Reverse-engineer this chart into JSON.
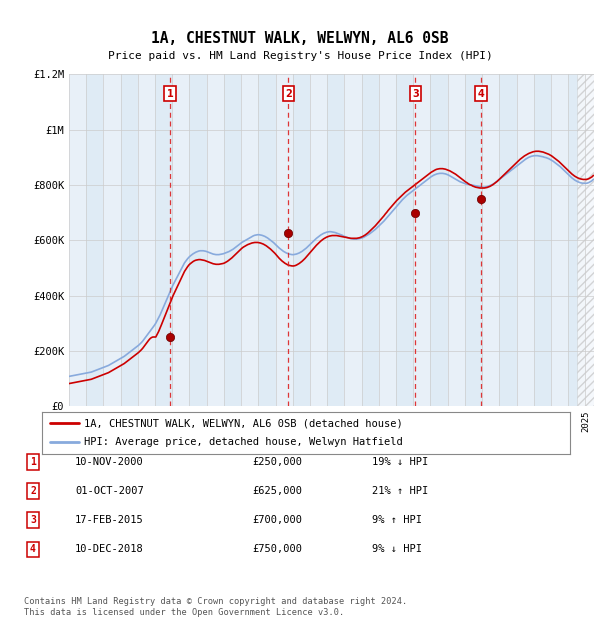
{
  "title": "1A, CHESTNUT WALK, WELWYN, AL6 0SB",
  "subtitle": "Price paid vs. HM Land Registry's House Price Index (HPI)",
  "footer": "Contains HM Land Registry data © Crown copyright and database right 2024.\nThis data is licensed under the Open Government Licence v3.0.",
  "legend_line1": "1A, CHESTNUT WALK, WELWYN, AL6 0SB (detached house)",
  "legend_line2": "HPI: Average price, detached house, Welwyn Hatfield",
  "ylim": [
    0,
    1200000
  ],
  "yticks": [
    0,
    200000,
    400000,
    600000,
    800000,
    1000000,
    1200000
  ],
  "ytick_labels": [
    "£0",
    "£200K",
    "£400K",
    "£600K",
    "£800K",
    "£1M",
    "£1.2M"
  ],
  "xmin": 1995.0,
  "xmax": 2025.5,
  "plot_bg": "#e8f0f8",
  "line_color_red": "#cc0000",
  "line_color_blue": "#88aadd",
  "transactions": [
    {
      "num": 1,
      "date": "10-NOV-2000",
      "price": 250000,
      "hpi_note": "19% ↓ HPI",
      "year": 2000.87
    },
    {
      "num": 2,
      "date": "01-OCT-2007",
      "price": 625000,
      "hpi_note": "21% ↑ HPI",
      "year": 2007.75
    },
    {
      "num": 3,
      "date": "17-FEB-2015",
      "price": 700000,
      "hpi_note": "9% ↑ HPI",
      "year": 2015.12
    },
    {
      "num": 4,
      "date": "10-DEC-2018",
      "price": 750000,
      "hpi_note": "9% ↓ HPI",
      "year": 2018.95
    }
  ],
  "hpi_monthly": {
    "start_year": 1995,
    "start_month": 1,
    "values": [
      108000,
      109000,
      110000,
      111000,
      112000,
      113000,
      114000,
      115000,
      116000,
      117000,
      118000,
      119000,
      120000,
      121000,
      122000,
      123000,
      125000,
      127000,
      129000,
      131000,
      133000,
      135000,
      137000,
      139000,
      141000,
      143000,
      145000,
      147000,
      150000,
      153000,
      156000,
      159000,
      162000,
      165000,
      168000,
      171000,
      174000,
      177000,
      180000,
      184000,
      188000,
      192000,
      196000,
      200000,
      204000,
      208000,
      212000,
      216000,
      220000,
      225000,
      230000,
      236000,
      243000,
      250000,
      257000,
      264000,
      271000,
      278000,
      285000,
      292000,
      300000,
      310000,
      320000,
      330000,
      342000,
      354000,
      366000,
      378000,
      390000,
      402000,
      414000,
      426000,
      438000,
      448000,
      458000,
      468000,
      478000,
      488000,
      498000,
      508000,
      518000,
      525000,
      532000,
      538000,
      543000,
      547000,
      551000,
      554000,
      557000,
      559000,
      561000,
      562000,
      562000,
      562000,
      561000,
      560000,
      558000,
      556000,
      554000,
      552000,
      550000,
      549000,
      548000,
      548000,
      548000,
      549000,
      550000,
      551000,
      553000,
      555000,
      557000,
      559000,
      562000,
      565000,
      568000,
      572000,
      576000,
      580000,
      584000,
      588000,
      592000,
      595000,
      598000,
      601000,
      604000,
      607000,
      610000,
      613000,
      616000,
      618000,
      619000,
      620000,
      620000,
      619000,
      618000,
      616000,
      614000,
      611000,
      608000,
      604000,
      600000,
      596000,
      592000,
      587000,
      582000,
      577000,
      572000,
      568000,
      564000,
      560000,
      557000,
      554000,
      552000,
      550000,
      549000,
      548000,
      548000,
      549000,
      550000,
      552000,
      554000,
      557000,
      560000,
      564000,
      568000,
      572000,
      577000,
      582000,
      587000,
      592000,
      597000,
      602000,
      607000,
      611000,
      615000,
      619000,
      622000,
      625000,
      627000,
      629000,
      630000,
      631000,
      631000,
      630000,
      629000,
      628000,
      626000,
      624000,
      622000,
      620000,
      618000,
      615000,
      613000,
      611000,
      609000,
      607000,
      606000,
      605000,
      604000,
      604000,
      604000,
      605000,
      606000,
      607000,
      609000,
      611000,
      614000,
      617000,
      620000,
      623000,
      627000,
      631000,
      635000,
      639000,
      644000,
      649000,
      654000,
      659000,
      664000,
      669000,
      675000,
      681000,
      687000,
      693000,
      699000,
      705000,
      711000,
      717000,
      723000,
      729000,
      735000,
      741000,
      747000,
      752000,
      757000,
      762000,
      766000,
      770000,
      774000,
      778000,
      782000,
      786000,
      790000,
      794000,
      798000,
      802000,
      806000,
      810000,
      814000,
      818000,
      822000,
      826000,
      830000,
      833000,
      836000,
      838000,
      840000,
      841000,
      842000,
      842000,
      842000,
      841000,
      840000,
      838000,
      836000,
      833000,
      830000,
      827000,
      824000,
      821000,
      818000,
      815000,
      812000,
      810000,
      808000,
      806000,
      804000,
      803000,
      802000,
      801000,
      800000,
      799000,
      798000,
      797000,
      796000,
      795000,
      794000,
      793000,
      792000,
      792000,
      793000,
      794000,
      796000,
      798000,
      800000,
      803000,
      806000,
      810000,
      814000,
      818000,
      822000,
      826000,
      830000,
      834000,
      838000,
      842000,
      846000,
      850000,
      854000,
      858000,
      862000,
      866000,
      870000,
      874000,
      878000,
      882000,
      886000,
      890000,
      894000,
      897000,
      900000,
      902000,
      904000,
      905000,
      906000,
      906000,
      906000,
      905000,
      904000,
      903000,
      902000,
      900000,
      899000,
      897000,
      895000,
      892000,
      889000,
      886000,
      882000,
      878000,
      874000,
      870000,
      866000,
      861000,
      856000,
      851000,
      846000,
      841000,
      836000,
      831000,
      826000,
      822000,
      818000,
      815000,
      812000,
      810000,
      808000,
      807000,
      806000,
      806000,
      806000,
      807000,
      809000,
      812000,
      815000,
      820000
    ]
  },
  "price_monthly": {
    "start_year": 1995,
    "start_month": 1,
    "values": [
      82000,
      83000,
      84000,
      85000,
      86000,
      87000,
      88000,
      89000,
      90000,
      91000,
      92000,
      93000,
      94000,
      95000,
      96000,
      97000,
      99000,
      101000,
      103000,
      105000,
      107000,
      109000,
      111000,
      113000,
      115000,
      117000,
      119000,
      121000,
      124000,
      127000,
      130000,
      133000,
      136000,
      139000,
      142000,
      145000,
      148000,
      151000,
      154000,
      158000,
      162000,
      166000,
      170000,
      174000,
      178000,
      182000,
      186000,
      190000,
      194000,
      199000,
      204000,
      210000,
      217000,
      224000,
      231000,
      238000,
      244000,
      248000,
      250000,
      250000,
      250000,
      260000,
      270000,
      282000,
      295000,
      308000,
      321000,
      334000,
      347000,
      360000,
      373000,
      386000,
      399000,
      410000,
      421000,
      432000,
      443000,
      454000,
      465000,
      476000,
      487000,
      495000,
      503000,
      510000,
      515000,
      519000,
      523000,
      526000,
      528000,
      529000,
      530000,
      530000,
      529000,
      528000,
      527000,
      525000,
      523000,
      521000,
      519000,
      517000,
      515000,
      514000,
      513000,
      513000,
      513000,
      514000,
      515000,
      516000,
      518000,
      521000,
      524000,
      528000,
      532000,
      536000,
      541000,
      546000,
      551000,
      556000,
      561000,
      566000,
      571000,
      575000,
      578000,
      581000,
      584000,
      586000,
      588000,
      590000,
      591000,
      592000,
      592000,
      592000,
      591000,
      590000,
      588000,
      586000,
      583000,
      580000,
      576000,
      572000,
      568000,
      563000,
      558000,
      553000,
      547000,
      541000,
      535000,
      530000,
      525000,
      521000,
      517000,
      514000,
      511000,
      509000,
      508000,
      507000,
      507000,
      508000,
      510000,
      513000,
      516000,
      520000,
      524000,
      529000,
      534000,
      540000,
      546000,
      552000,
      558000,
      564000,
      570000,
      576000,
      582000,
      587000,
      592000,
      597000,
      601000,
      605000,
      608000,
      611000,
      613000,
      615000,
      616000,
      617000,
      617000,
      617000,
      617000,
      616000,
      615000,
      614000,
      613000,
      612000,
      611000,
      610000,
      609000,
      608000,
      607000,
      607000,
      607000,
      607000,
      607000,
      608000,
      609000,
      611000,
      613000,
      616000,
      619000,
      623000,
      627000,
      632000,
      637000,
      642000,
      647000,
      652000,
      658000,
      664000,
      670000,
      676000,
      682000,
      688000,
      695000,
      701000,
      708000,
      714000,
      720000,
      726000,
      732000,
      738000,
      744000,
      749000,
      754000,
      759000,
      764000,
      769000,
      774000,
      778000,
      782000,
      786000,
      790000,
      794000,
      798000,
      802000,
      806000,
      810000,
      814000,
      818000,
      822000,
      826000,
      830000,
      834000,
      838000,
      842000,
      846000,
      849000,
      852000,
      855000,
      857000,
      858000,
      859000,
      859000,
      859000,
      858000,
      857000,
      855000,
      853000,
      851000,
      848000,
      845000,
      842000,
      839000,
      835000,
      831000,
      827000,
      823000,
      819000,
      815000,
      811000,
      808000,
      804000,
      801000,
      799000,
      796000,
      794000,
      792000,
      791000,
      790000,
      789000,
      789000,
      789000,
      789000,
      790000,
      791000,
      793000,
      795000,
      798000,
      801000,
      805000,
      809000,
      813000,
      818000,
      823000,
      828000,
      833000,
      838000,
      843000,
      848000,
      853000,
      858000,
      863000,
      868000,
      873000,
      878000,
      883000,
      888000,
      893000,
      897000,
      901000,
      905000,
      908000,
      911000,
      914000,
      916000,
      918000,
      920000,
      921000,
      922000,
      922000,
      922000,
      921000,
      920000,
      919000,
      917000,
      915000,
      913000,
      911000,
      908000,
      905000,
      901000,
      897000,
      893000,
      889000,
      885000,
      880000,
      875000,
      870000,
      865000,
      860000,
      855000,
      850000,
      845000,
      840000,
      836000,
      832000,
      829000,
      826000,
      824000,
      822000,
      821000,
      820000,
      820000,
      820000,
      821000,
      823000,
      826000,
      829000,
      834000
    ]
  }
}
